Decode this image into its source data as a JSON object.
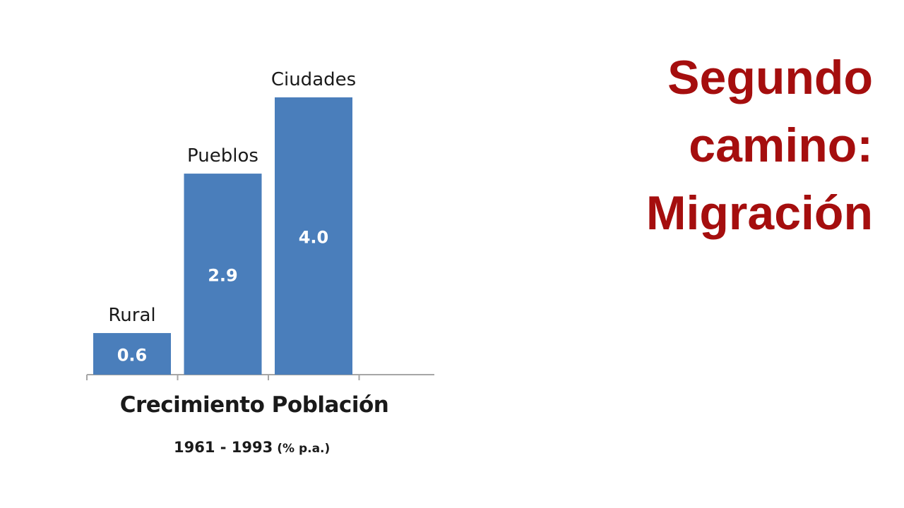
{
  "slide": {
    "title_lines": [
      "Segundo",
      "camino:",
      "Migración"
    ],
    "title_color": "#a50e0e"
  },
  "chart_data": {
    "type": "bar",
    "categories": [
      "Rural",
      "Pueblos",
      "Ciudades"
    ],
    "values": [
      0.6,
      2.9,
      4.0
    ],
    "value_labels": [
      "0.6",
      "2.9",
      "4.0"
    ],
    "title": "Crecimiento Población",
    "subtitle_years": "1961 - 1993",
    "subtitle_unit": "(% p.a.)",
    "bar_color": "#4a7ebb",
    "value_label_color": "#ffffff",
    "category_label_color": "#1a1a1a",
    "axis_color": "#a6a6a6",
    "grid": false,
    "ylim": [
      0,
      4.0
    ]
  }
}
